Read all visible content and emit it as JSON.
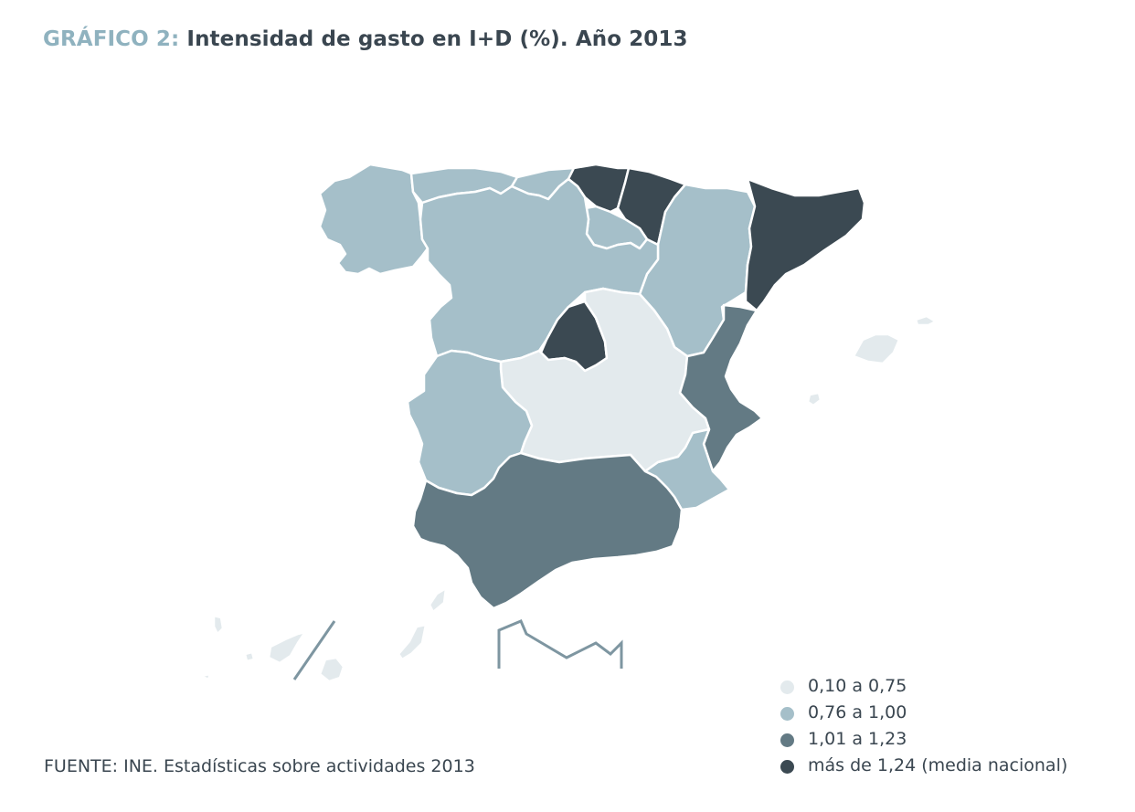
{
  "title": {
    "prefix": "GRÁFICO 2:",
    "main": "Intensidad de gasto en I+D (%). Año 2013"
  },
  "colors": {
    "c1": "#e3eaed",
    "c2": "#a5bfc9",
    "c3": "#637a84",
    "c4": "#3b4952",
    "border": "#ffffff"
  },
  "legend": [
    {
      "label": "0,10 a 0,75",
      "color": "#e3eaed"
    },
    {
      "label": "0,76 a 1,00",
      "color": "#a5bfc9"
    },
    {
      "label": "1,01 a 1,23",
      "color": "#637a84"
    },
    {
      "label": "más de 1,24 (media nacional)",
      "color": "#3b4952"
    }
  ],
  "regions": [
    {
      "id": "galicia",
      "class": "0,76 a 1,00"
    },
    {
      "id": "asturias",
      "class": "0,76 a 1,00"
    },
    {
      "id": "cantabria",
      "class": "0,76 a 1,00"
    },
    {
      "id": "pais-vasco",
      "class": "más de 1,24 (media nacional)"
    },
    {
      "id": "navarra",
      "class": "más de 1,24 (media nacional)"
    },
    {
      "id": "la-rioja",
      "class": "0,76 a 1,00"
    },
    {
      "id": "aragon",
      "class": "0,76 a 1,00"
    },
    {
      "id": "cataluna",
      "class": "más de 1,24 (media nacional)"
    },
    {
      "id": "castilla-y-leon",
      "class": "0,76 a 1,00"
    },
    {
      "id": "madrid",
      "class": "más de 1,24 (media nacional)"
    },
    {
      "id": "castilla-la-mancha",
      "class": "0,10 a 0,75"
    },
    {
      "id": "extremadura",
      "class": "0,76 a 1,00"
    },
    {
      "id": "comunidad-valenciana",
      "class": "1,01 a 1,23"
    },
    {
      "id": "murcia",
      "class": "0,76 a 1,00"
    },
    {
      "id": "andalucia",
      "class": "1,01 a 1,23"
    },
    {
      "id": "baleares",
      "class": "0,10 a 0,75"
    },
    {
      "id": "canarias",
      "class": "0,10 a 0,75"
    }
  ],
  "source": "FUENTE: INE. Estadísticas sobre actividades 2013"
}
